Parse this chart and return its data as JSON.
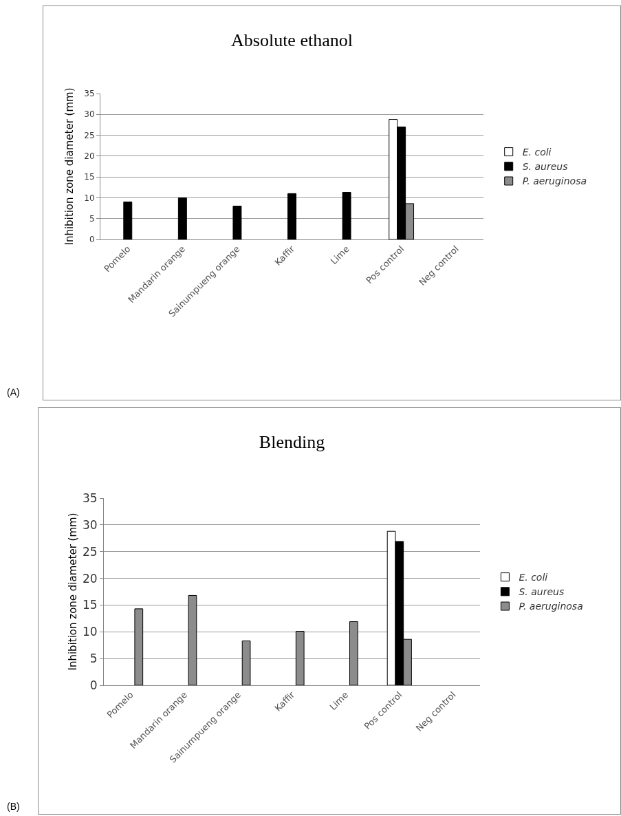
{
  "chart_data": [
    {
      "type": "bar",
      "title": "Absolute ethanol",
      "ylabel": "Inhibition zone diameter (mm)",
      "annotations": [
        "(A)"
      ],
      "categories": [
        "Pomelo",
        "Mandarin orange",
        "Sainumpueng orange",
        "Kaffir",
        "Lime",
        "Pos control",
        "Neg control"
      ],
      "series": [
        {
          "name": "E. coli",
          "color": "#ffffff",
          "values": [
            null,
            null,
            null,
            null,
            null,
            28.8,
            null
          ]
        },
        {
          "name": "S. aureus",
          "color": "#000000",
          "values": [
            9,
            10,
            8,
            11,
            11.3,
            27,
            null
          ]
        },
        {
          "name": "P. aeruginosa",
          "color": "#8c8c8c",
          "values": [
            null,
            null,
            null,
            null,
            null,
            8.6,
            null
          ]
        }
      ],
      "ylim": [
        0,
        35
      ],
      "yticks": [
        0,
        5,
        10,
        15,
        20,
        25,
        30,
        35
      ],
      "grid": "y",
      "legend": "right"
    },
    {
      "type": "bar",
      "title": "Blending",
      "ylabel": "Inhibition zone diameter (mm)",
      "annotations": [
        "(B)"
      ],
      "categories": [
        "Pomelo",
        "Mandarin orange",
        "Sainumpueng orange",
        "Kaffir",
        "Lime",
        "Pos control",
        "Neg control"
      ],
      "series": [
        {
          "name": "E. coli",
          "color": "#ffffff",
          "values": [
            null,
            null,
            null,
            null,
            null,
            28.8,
            null
          ]
        },
        {
          "name": "S. aureus",
          "color": "#000000",
          "values": [
            null,
            null,
            null,
            null,
            null,
            26.9,
            null
          ]
        },
        {
          "name": "P. aeruginosa",
          "color": "#8c8c8c",
          "values": [
            14.3,
            16.8,
            8.3,
            10.1,
            11.9,
            8.6,
            null
          ]
        }
      ],
      "ylim": [
        0,
        35
      ],
      "yticks": [
        0,
        5,
        10,
        15,
        20,
        25,
        30,
        35
      ],
      "grid": "y",
      "legend": "right"
    }
  ]
}
